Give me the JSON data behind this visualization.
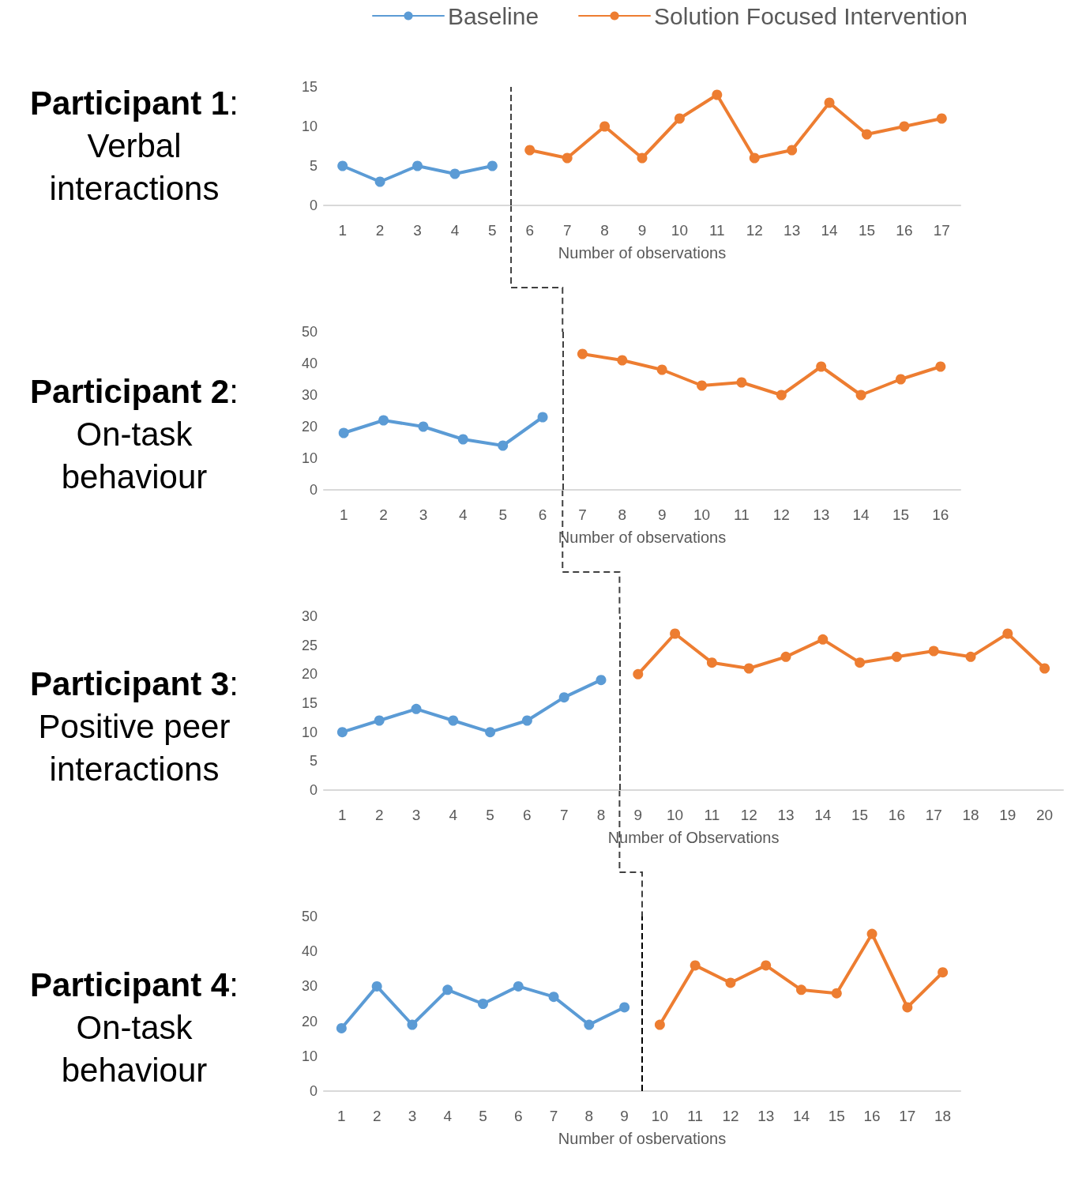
{
  "chart_data": [
    {
      "type": "line",
      "title": "Participant 1: Verbal interactions",
      "xlabel": "Number of observations",
      "xlim": [
        0.5,
        17.5
      ],
      "xticks": [
        1,
        2,
        3,
        4,
        5,
        6,
        7,
        8,
        9,
        10,
        11,
        12,
        13,
        14,
        15,
        16,
        17
      ],
      "ylim": [
        0,
        15
      ],
      "yticks": [
        0,
        5,
        10,
        15
      ],
      "grid": false,
      "legend": "top",
      "marker": "circle",
      "line_style": "solid",
      "series": [
        {
          "name": "Baseline",
          "color": "#5b9bd5",
          "x": [
            1,
            2,
            3,
            4,
            5
          ],
          "values": [
            5,
            3,
            5,
            4,
            5
          ]
        },
        {
          "name": "Solution Focused Intervention",
          "color": "#ed7d31",
          "x": [
            6,
            7,
            8,
            9,
            10,
            11,
            12,
            13,
            14,
            15,
            16,
            17
          ],
          "values": [
            7,
            6,
            10,
            6,
            11,
            14,
            6,
            7,
            13,
            9,
            10,
            11
          ]
        }
      ],
      "ref_lines": [
        {
          "axis": "x",
          "value": 5.5,
          "color": "#404040",
          "line_style": "dashed"
        }
      ]
    },
    {
      "type": "line",
      "title": "Participant 2: On-task behaviour",
      "xlabel": "Number of observations",
      "xlim": [
        0.5,
        16.5
      ],
      "xticks": [
        1,
        2,
        3,
        4,
        5,
        6,
        7,
        8,
        9,
        10,
        11,
        12,
        13,
        14,
        15,
        16
      ],
      "ylim": [
        0,
        50
      ],
      "yticks": [
        0,
        10,
        20,
        30,
        40,
        50
      ],
      "grid": false,
      "marker": "circle",
      "line_style": "solid",
      "series": [
        {
          "color": "#5b9bd5",
          "x": [
            1,
            2,
            3,
            4,
            5,
            6
          ],
          "values": [
            18,
            22,
            20,
            16,
            14,
            23
          ]
        },
        {
          "color": "#ed7d31",
          "x": [
            7,
            8,
            9,
            10,
            11,
            12,
            13,
            14,
            15,
            16
          ],
          "values": [
            43,
            41,
            38,
            33,
            34,
            30,
            39,
            30,
            35,
            39
          ]
        }
      ],
      "ref_lines": [
        {
          "axis": "x",
          "value": 6.5,
          "color": "#404040",
          "line_style": "dashed"
        }
      ]
    },
    {
      "type": "line",
      "title": "Participant 3: Positive peer interactions",
      "xlabel": "Number of Observations",
      "xlim": [
        0.5,
        20.5
      ],
      "xticks": [
        1,
        2,
        3,
        4,
        5,
        6,
        7,
        8,
        9,
        10,
        11,
        12,
        13,
        14,
        15,
        16,
        17,
        18,
        19,
        20
      ],
      "ylim": [
        0,
        30
      ],
      "yticks": [
        0,
        5,
        10,
        15,
        20,
        25,
        30
      ],
      "grid": false,
      "marker": "circle",
      "line_style": "solid",
      "series": [
        {
          "color": "#5b9bd5",
          "x": [
            1,
            2,
            3,
            4,
            5,
            6,
            7,
            8
          ],
          "values": [
            10,
            12,
            14,
            12,
            10,
            12,
            16,
            19
          ]
        },
        {
          "color": "#ed7d31",
          "x": [
            9,
            10,
            11,
            12,
            13,
            14,
            15,
            16,
            17,
            18,
            19,
            20
          ],
          "values": [
            20,
            27,
            22,
            21,
            23,
            26,
            22,
            23,
            24,
            23,
            27,
            21
          ]
        }
      ],
      "ref_lines": [
        {
          "axis": "x",
          "value": 8.5,
          "color": "#404040",
          "line_style": "dashed"
        }
      ]
    },
    {
      "type": "line",
      "title": "Participant 4: On-task behaviour",
      "xlabel": "Number of osbervations",
      "xlim": [
        0.5,
        18.5
      ],
      "xticks": [
        1,
        2,
        3,
        4,
        5,
        6,
        7,
        8,
        9,
        10,
        11,
        12,
        13,
        14,
        15,
        16,
        17,
        18
      ],
      "ylim": [
        0,
        50
      ],
      "yticks": [
        0,
        10,
        20,
        30,
        40,
        50
      ],
      "grid": false,
      "marker": "circle",
      "line_style": "solid",
      "series": [
        {
          "color": "#5b9bd5",
          "x": [
            1,
            2,
            3,
            4,
            5,
            6,
            7,
            8,
            9
          ],
          "values": [
            18,
            30,
            19,
            29,
            25,
            30,
            27,
            19,
            24
          ]
        },
        {
          "color": "#ed7d31",
          "x": [
            10,
            11,
            12,
            13,
            14,
            15,
            16,
            17,
            18
          ],
          "values": [
            19,
            36,
            31,
            36,
            29,
            28,
            45,
            24,
            34
          ]
        }
      ],
      "ref_lines": [
        {
          "axis": "x",
          "value": 9.5,
          "color": "#000000",
          "line_style": "dashed"
        }
      ]
    }
  ]
}
